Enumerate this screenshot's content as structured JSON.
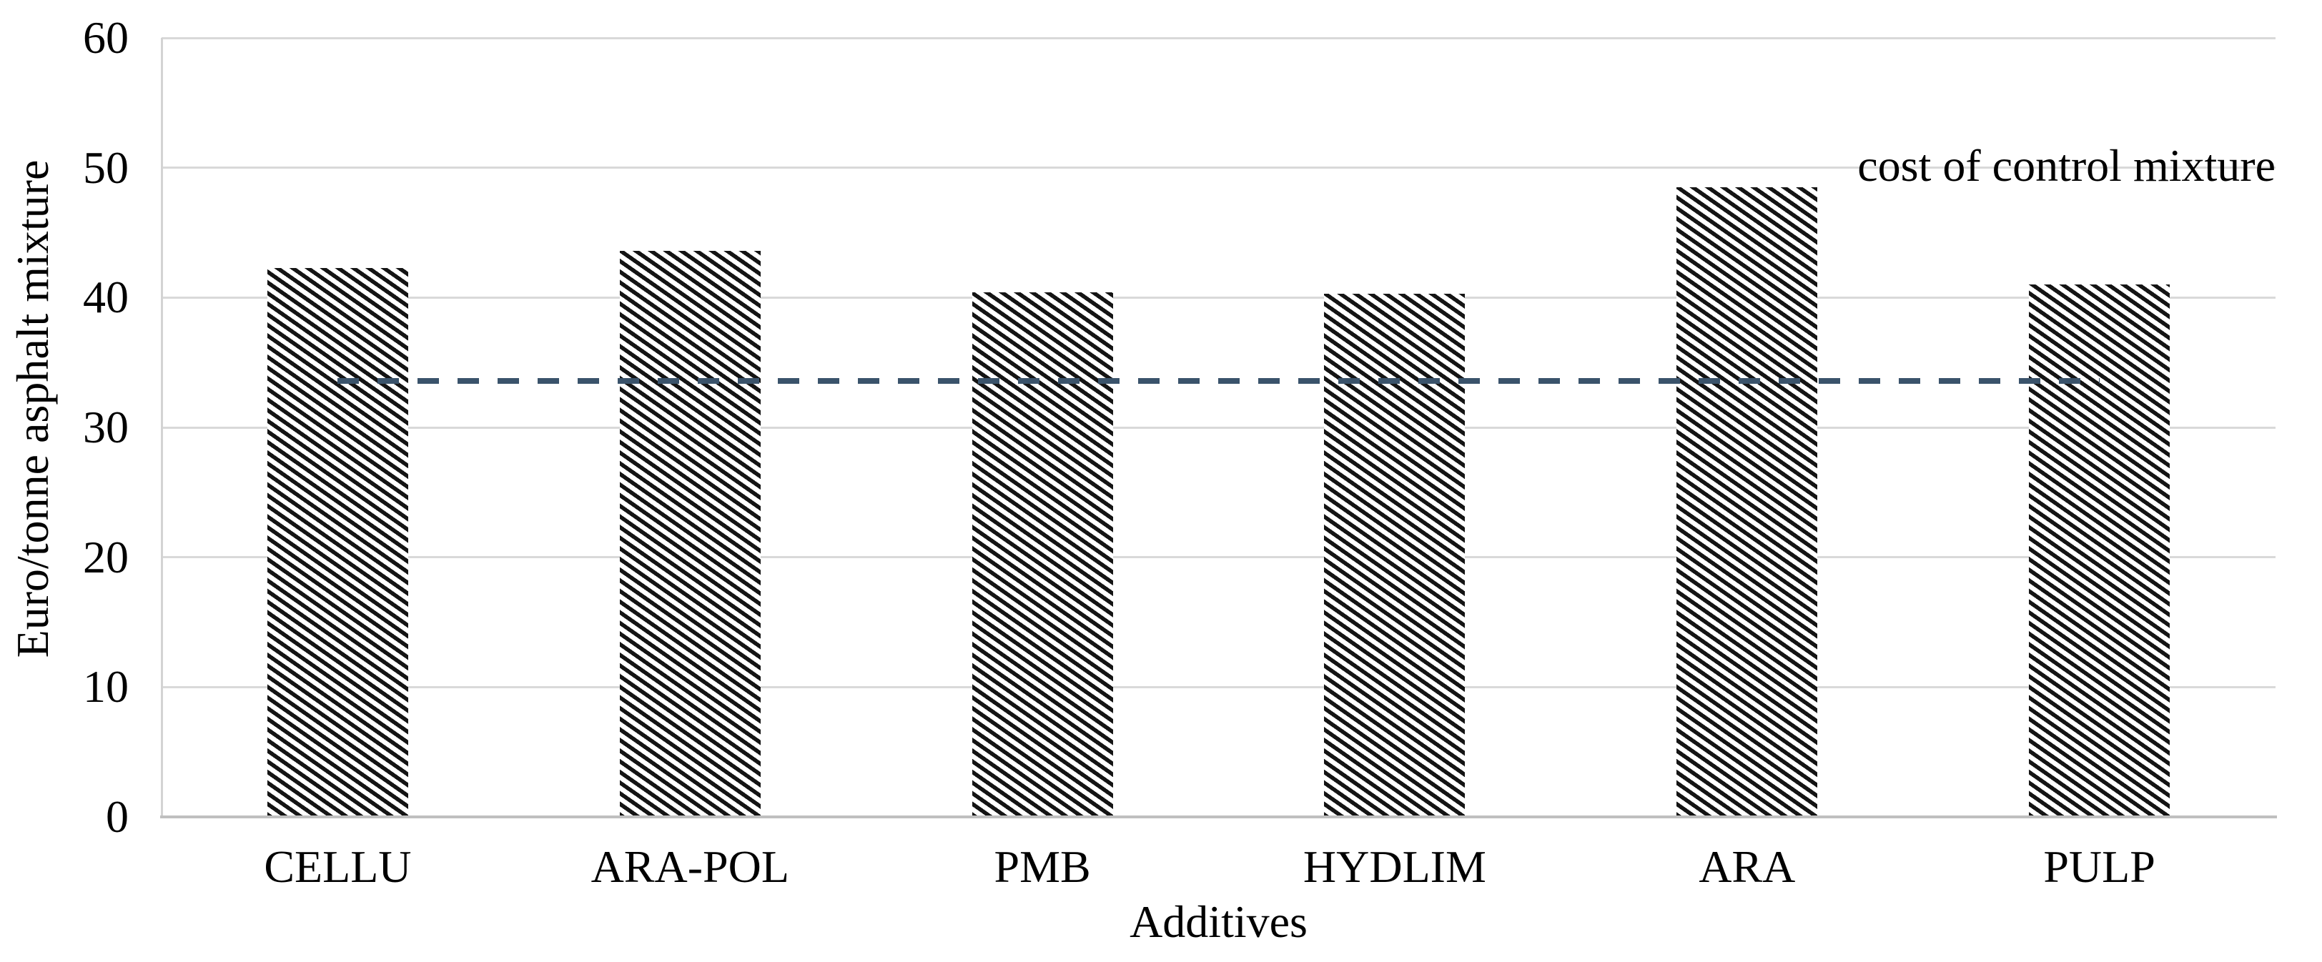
{
  "chart_data": {
    "type": "bar",
    "title": "",
    "categories": [
      "CELLU",
      "ARA-POL",
      "PMB",
      "HYDLIM",
      "ARA",
      "PULP"
    ],
    "values": [
      42.3,
      43.6,
      40.4,
      40.3,
      48.5,
      41.0
    ],
    "xlabel": "Additives",
    "ylabel": "Euro/tonne asphalt mixture",
    "ylim": [
      0,
      60
    ],
    "yticks": [
      0,
      10,
      20,
      30,
      40,
      50,
      60
    ],
    "grid": true,
    "legend": "none",
    "bar_fill": "black-white diagonal hatch (downward \\ stripes)",
    "reference_line": {
      "value": 33.6,
      "label": "cost of control mixture",
      "style": "dashed",
      "color": "#3a536b",
      "extent": "from first category center to last category center"
    },
    "colors": {
      "stripe": "#141414",
      "gridline": "#d9d9d9",
      "axis": "#bfbfbf",
      "text": "#000000"
    }
  }
}
